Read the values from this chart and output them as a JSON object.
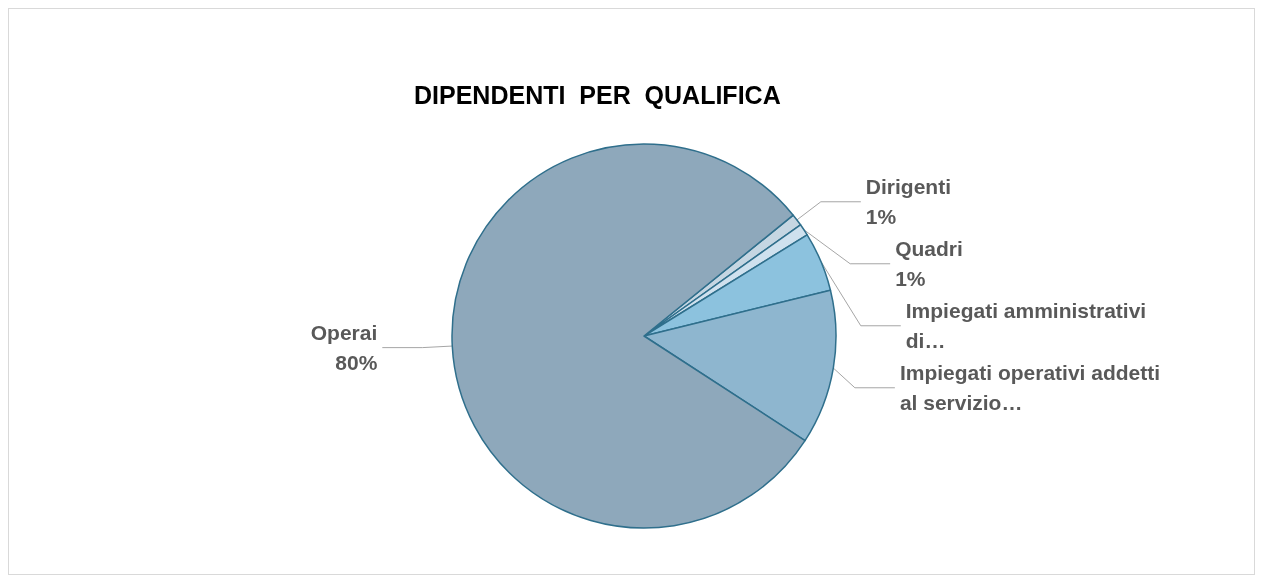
{
  "chart_data": {
    "type": "pie",
    "title": "DIPENDENTI  PER  QUALIFICA",
    "categories": [
      "Dirigenti",
      "Quadri",
      "Impiegati amministrativi di…",
      "Impiegati operativi addetti al servizio…",
      "Operai"
    ],
    "values": [
      1,
      1,
      5,
      13,
      80
    ],
    "value_labels": [
      "1%",
      "1%",
      null,
      null,
      "80%"
    ],
    "colors": [
      "#c5d6e2",
      "#cfe1ee",
      "#8cc2de",
      "#8eb6cf",
      "#8ea8bb"
    ],
    "legend": false
  }
}
